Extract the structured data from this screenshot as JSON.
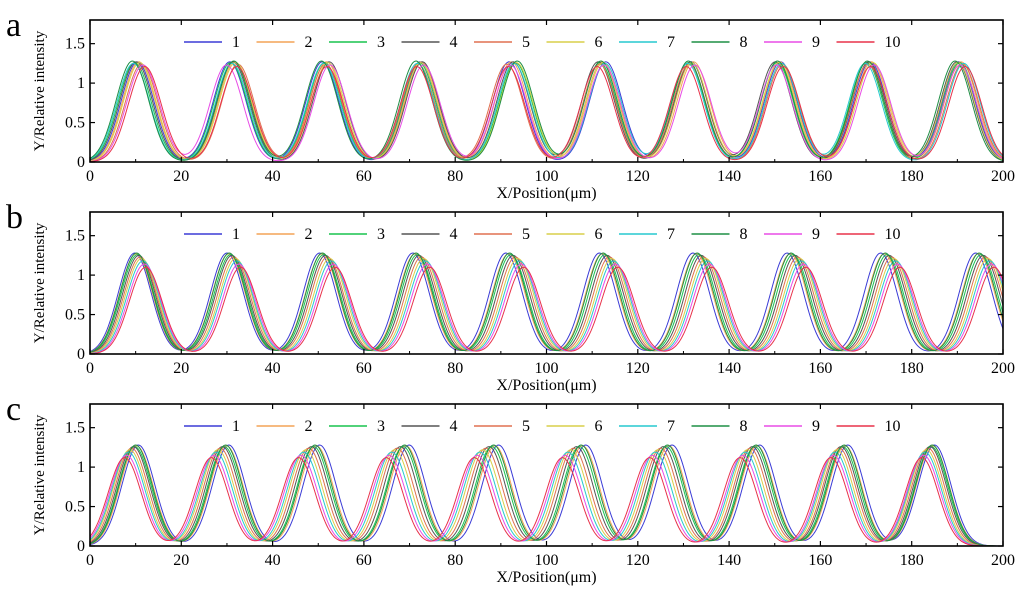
{
  "colors": {
    "series": [
      "#3b3bd6",
      "#f4a356",
      "#19c44f",
      "#555555",
      "#e07050",
      "#d8cf4a",
      "#26c9cf",
      "#1f8f45",
      "#e84de6",
      "#e8324a"
    ]
  },
  "chart_data": [
    {
      "type": "line",
      "panel_label": "a",
      "xlabel": "X/Position(μm)",
      "ylabel": "Y/Relative intensity",
      "xlim": [
        0,
        200
      ],
      "ylim": [
        0,
        1.8
      ],
      "xticks": [
        0,
        20,
        40,
        60,
        80,
        100,
        120,
        140,
        160,
        180,
        200
      ],
      "yticks": [
        0,
        0.5,
        1,
        1.5
      ],
      "ytick_labels": [
        "0",
        "0.5",
        "1",
        "1.5"
      ],
      "grid": false,
      "legend_position": "top",
      "series": [
        {
          "name": "1",
          "peaks": [
            10.4,
            30.6,
            50.9,
            72.3,
            91.8,
            113.0,
            131.7,
            151.3,
            170.9,
            190.3
          ],
          "amplitude": 1.27
        },
        {
          "name": "2",
          "peaks": [
            10.7,
            31.7,
            51.8,
            72.6,
            92.3,
            112.2,
            132.2,
            151.1,
            171.2,
            190.8
          ],
          "amplitude": 1.27
        },
        {
          "name": "3",
          "peaks": [
            9.8,
            30.8,
            51.4,
            72.1,
            93.2,
            111.7,
            131.1,
            150.5,
            170.1,
            190.5
          ],
          "amplitude": 1.26
        },
        {
          "name": "4",
          "peaks": [
            10.1,
            31.3,
            52.4,
            72.8,
            92.7,
            111.3,
            131.6,
            150.1,
            170.6,
            189.9
          ],
          "amplitude": 1.27
        },
        {
          "name": "5",
          "peaks": [
            11.3,
            32.4,
            51.6,
            71.9,
            91.3,
            111.6,
            131.3,
            151.7,
            170.4,
            191.1
          ],
          "amplitude": 1.24
        },
        {
          "name": "6",
          "peaks": [
            10.9,
            31.9,
            52.1,
            72.4,
            93.4,
            112.4,
            131.8,
            150.9,
            171.5,
            190.1
          ],
          "amplitude": 1.26
        },
        {
          "name": "7",
          "peaks": [
            9.5,
            31.1,
            51.2,
            71.7,
            92.9,
            112.8,
            130.9,
            151.5,
            169.8,
            191.4
          ],
          "amplitude": 1.25
        },
        {
          "name": "8",
          "peaks": [
            9.3,
            31.5,
            50.7,
            71.4,
            93.6,
            111.9,
            131.1,
            150.6,
            170.3,
            189.5
          ],
          "amplitude": 1.28
        },
        {
          "name": "9",
          "peaks": [
            11.6,
            29.9,
            52.6,
            73.1,
            92.1,
            112.6,
            132.5,
            150.3,
            171.8,
            190.6
          ],
          "amplitude": 1.23
        },
        {
          "name": "10",
          "peaks": [
            12.0,
            32.2,
            51.9,
            71.6,
            91.6,
            111.1,
            130.6,
            151.9,
            171.0,
            191.7
          ],
          "amplitude": 1.21
        }
      ]
    },
    {
      "type": "line",
      "panel_label": "b",
      "xlabel": "X/Position(μm)",
      "ylabel": "Y/Relative intensity",
      "xlim": [
        0,
        200
      ],
      "ylim": [
        0,
        1.8
      ],
      "xticks": [
        0,
        20,
        40,
        60,
        80,
        100,
        120,
        140,
        160,
        180,
        200
      ],
      "yticks": [
        0,
        0.5,
        1,
        1.5
      ],
      "ytick_labels": [
        "0",
        "0.5",
        "1",
        "1.5"
      ],
      "grid": false,
      "legend_position": "top",
      "series": [
        {
          "name": "1",
          "peaks": [
            9.8,
            30.0,
            50.3,
            70.7,
            91.1,
            111.6,
            132.1,
            152.7,
            173.2,
            194.0
          ],
          "amplitude": 1.28
        },
        {
          "name": "2",
          "peaks": [
            10.1,
            30.4,
            50.8,
            71.2,
            91.7,
            112.2,
            132.8,
            153.4,
            174.0,
            194.6
          ],
          "amplitude": 1.27
        },
        {
          "name": "3",
          "peaks": [
            10.4,
            30.8,
            51.2,
            71.7,
            92.2,
            112.8,
            133.4,
            154.0,
            174.6,
            195.2
          ],
          "amplitude": 1.26
        },
        {
          "name": "4",
          "peaks": [
            10.7,
            31.1,
            51.6,
            72.1,
            92.7,
            113.3,
            133.9,
            154.5,
            175.1,
            195.7
          ],
          "amplitude": 1.25
        },
        {
          "name": "5",
          "peaks": [
            11.0,
            31.5,
            52.0,
            72.6,
            93.2,
            113.8,
            134.4,
            155.0,
            175.6,
            196.2
          ],
          "amplitude": 1.23
        },
        {
          "name": "6",
          "peaks": [
            11.3,
            31.9,
            52.5,
            73.1,
            93.7,
            114.3,
            134.9,
            155.5,
            176.1,
            196.7
          ],
          "amplitude": 1.21
        },
        {
          "name": "7",
          "peaks": [
            11.6,
            32.2,
            52.9,
            73.5,
            94.1,
            114.7,
            135.3,
            155.9,
            176.5,
            197.1
          ],
          "amplitude": 1.18
        },
        {
          "name": "8",
          "peaks": [
            10.2,
            30.5,
            50.9,
            71.4,
            91.9,
            112.4,
            133.0,
            153.6,
            174.2,
            194.8
          ],
          "amplitude": 1.28
        },
        {
          "name": "9",
          "peaks": [
            11.9,
            32.6,
            53.3,
            73.9,
            94.5,
            115.1,
            135.7,
            156.3,
            176.9,
            197.5
          ],
          "amplitude": 1.14
        },
        {
          "name": "10",
          "peaks": [
            12.2,
            33.0,
            53.7,
            74.4,
            95.0,
            115.6,
            136.2,
            156.8,
            177.4,
            198.0
          ],
          "amplitude": 1.1
        }
      ]
    },
    {
      "type": "line",
      "panel_label": "c",
      "xlabel": "X/Position(μm)",
      "ylabel": "Y/Relative intensity",
      "xlim": [
        0,
        200
      ],
      "ylim": [
        0,
        1.8
      ],
      "xticks": [
        0,
        20,
        40,
        60,
        80,
        100,
        120,
        140,
        160,
        180,
        200
      ],
      "yticks": [
        0,
        0.5,
        1,
        1.5
      ],
      "ytick_labels": [
        "0",
        "0.5",
        "1",
        "1.5"
      ],
      "grid": false,
      "legend_position": "top",
      "series": [
        {
          "name": "1",
          "peaks": [
            10.6,
            30.4,
            50.3,
            69.9,
            89.5,
            108.6,
            127.5,
            146.7,
            166.0,
            185.0
          ],
          "amplitude": 1.28
        },
        {
          "name": "2",
          "peaks": [
            10.2,
            29.9,
            49.6,
            69.2,
            88.7,
            107.9,
            126.8,
            146.1,
            165.4,
            184.6
          ],
          "amplitude": 1.27
        },
        {
          "name": "3",
          "peaks": [
            9.8,
            29.4,
            49.0,
            68.6,
            88.0,
            107.2,
            126.2,
            145.6,
            164.9,
            184.3
          ],
          "amplitude": 1.26
        },
        {
          "name": "4",
          "peaks": [
            9.5,
            29.0,
            48.5,
            68.0,
            87.4,
            106.6,
            125.6,
            145.1,
            164.5,
            184.0
          ],
          "amplitude": 1.26
        },
        {
          "name": "5",
          "peaks": [
            9.1,
            28.5,
            47.9,
            67.3,
            86.7,
            105.9,
            125.0,
            144.6,
            164.1,
            183.6
          ],
          "amplitude": 1.24
        },
        {
          "name": "6",
          "peaks": [
            8.7,
            28.0,
            47.3,
            66.7,
            86.0,
            105.3,
            124.4,
            144.0,
            163.6,
            183.2
          ],
          "amplitude": 1.22
        },
        {
          "name": "7",
          "peaks": [
            8.4,
            27.6,
            46.8,
            66.1,
            85.4,
            104.7,
            123.8,
            143.5,
            163.2,
            182.9
          ],
          "amplitude": 1.19
        },
        {
          "name": "8",
          "peaks": [
            10.0,
            29.7,
            49.3,
            68.9,
            88.4,
            107.6,
            126.5,
            145.9,
            165.2,
            184.5
          ],
          "amplitude": 1.28
        },
        {
          "name": "9",
          "peaks": [
            8.0,
            27.1,
            46.2,
            65.5,
            84.8,
            104.1,
            123.2,
            143.0,
            162.8,
            182.6
          ],
          "amplitude": 1.15
        },
        {
          "name": "10",
          "peaks": [
            7.6,
            26.6,
            45.7,
            64.9,
            84.2,
            103.5,
            122.6,
            142.4,
            162.3,
            182.2
          ],
          "amplitude": 1.12
        }
      ]
    }
  ]
}
